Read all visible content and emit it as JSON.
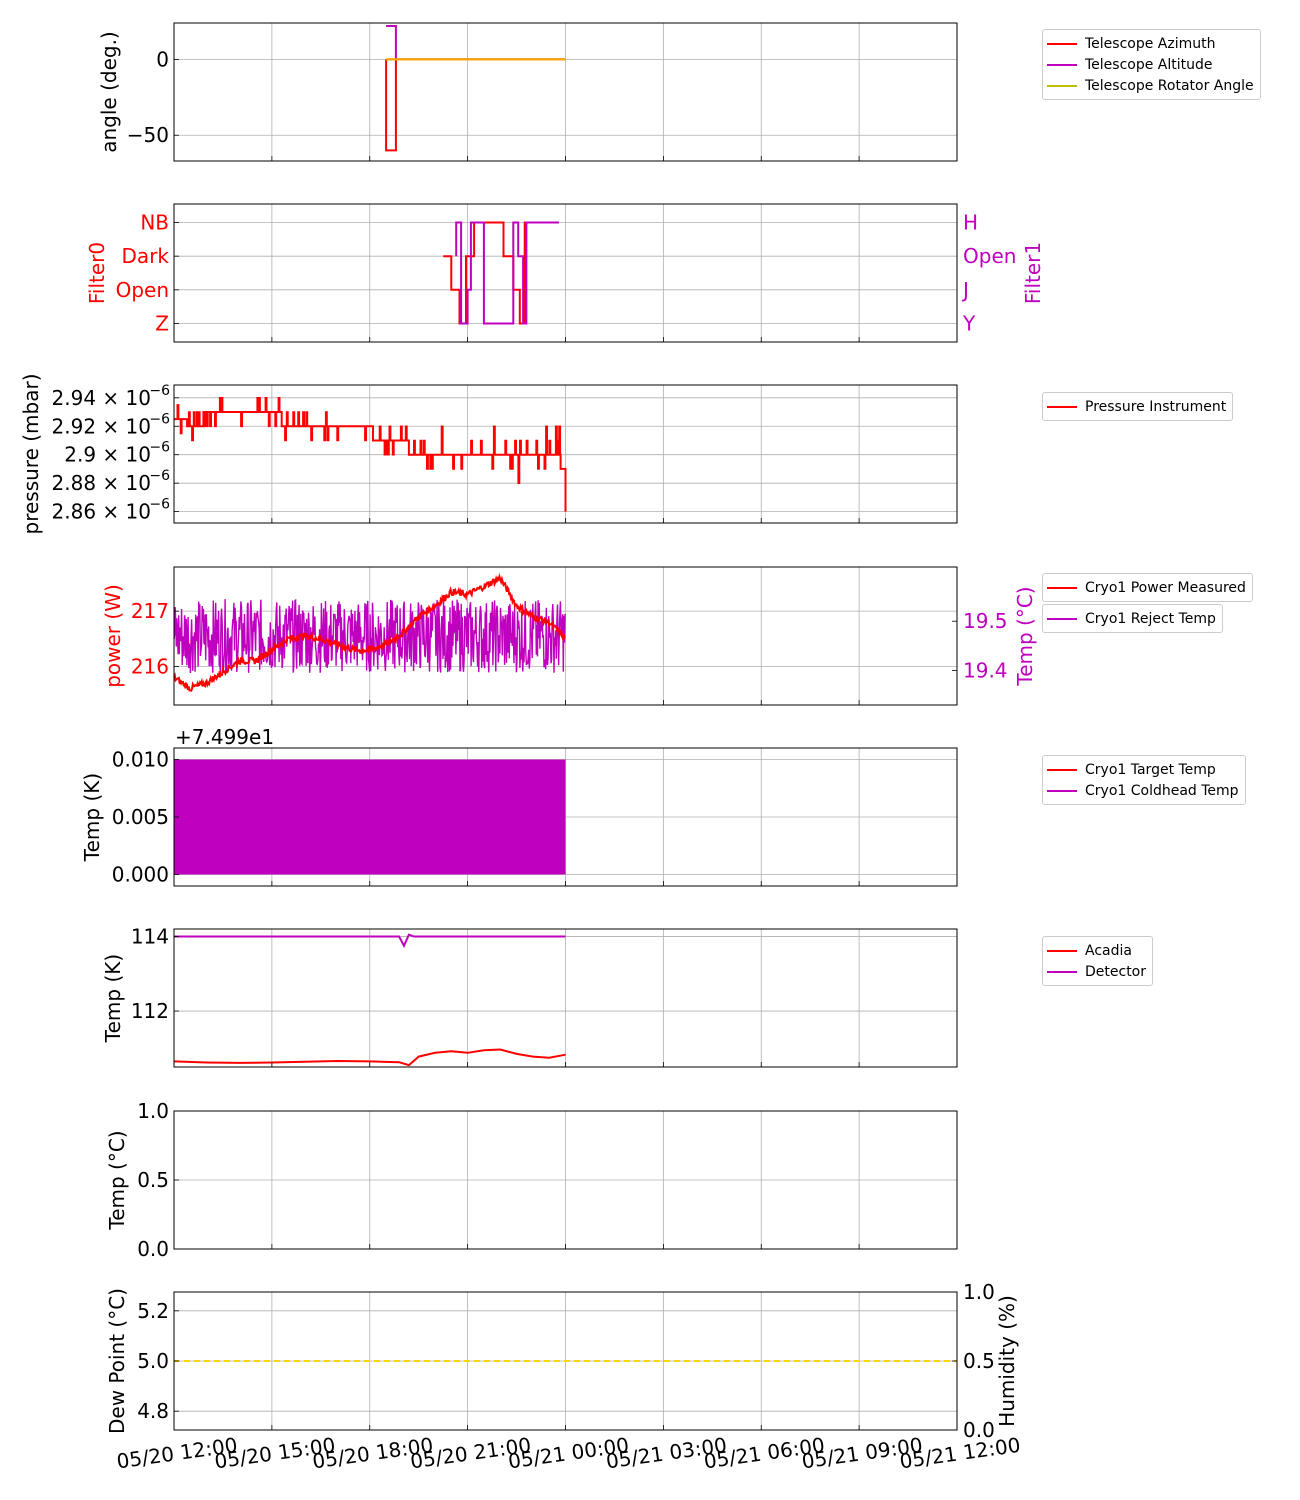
{
  "colors": {
    "red": "#ff0000",
    "magenta": "#bf00bf",
    "olive": "#bfbf00",
    "orange": "#ffa500",
    "gold": "#ffd700",
    "grid": "#b0b0b0"
  },
  "x_axis": {
    "ticks": [
      "05/20 12:00",
      "05/20 15:00",
      "05/20 18:00",
      "05/20 21:00",
      "05/21 00:00",
      "05/21 03:00",
      "05/21 06:00",
      "05/21 09:00",
      "05/21 12:00"
    ]
  },
  "legends": {
    "angle": [
      "Telescope Azimuth",
      "Telescope Altitude",
      "Telescope Rotator Angle"
    ],
    "pressure": [
      "Pressure Instrument"
    ],
    "power_a": [
      "Cryo1 Power Measured"
    ],
    "power_b": [
      "Cryo1 Reject Temp"
    ],
    "cryo": [
      "Cryo1 Target Temp",
      "Cryo1 Coldhead Temp"
    ],
    "detector": [
      "Acadia",
      "Detector"
    ]
  },
  "chart_data": [
    {
      "type": "line",
      "panel": "angle",
      "ylabel": "angle (deg.)",
      "yticks": [
        "0",
        "−50"
      ],
      "ylim": [
        -67,
        24
      ],
      "grid": true,
      "legend": "right",
      "series": [
        {
          "name": "Telescope Azimuth",
          "color": "red",
          "x": [
            18.5,
            18.5,
            18.8,
            18.8,
            24.0
          ],
          "y": [
            0,
            -60,
            -60,
            0,
            0
          ]
        },
        {
          "name": "Telescope Altitude",
          "color": "magenta",
          "x": [
            18.5,
            18.8,
            18.8,
            24.0
          ],
          "y": [
            22,
            22,
            0,
            0
          ]
        },
        {
          "name": "Telescope Rotator Angle",
          "color": "olive",
          "x": [
            18.5,
            24.0
          ],
          "y": [
            0,
            0
          ]
        }
      ],
      "overlay": {
        "color": "orange",
        "x": [
          18.5,
          24.0
        ],
        "y": [
          0,
          0
        ]
      }
    },
    {
      "type": "line",
      "panel": "filters",
      "ylabel_left": "Filter0",
      "ylabel_right": "Filter1",
      "categories_left": [
        "Z",
        "Open",
        "Dark",
        "NB"
      ],
      "categories_right": [
        "Y",
        "J",
        "Open",
        "H"
      ],
      "grid": true,
      "series": [
        {
          "name": "Filter0",
          "color": "red",
          "x": [
            20.25,
            20.5,
            20.5,
            20.75,
            20.75,
            20.95,
            20.95,
            21.2,
            21.2,
            22.1,
            22.1,
            22.4,
            22.4,
            22.6,
            22.6,
            22.75,
            22.75,
            23.8
          ],
          "y": [
            2,
            2,
            1,
            1,
            0,
            0,
            2,
            2,
            3,
            3,
            2,
            2,
            1,
            1,
            0,
            0,
            3,
            3
          ]
        },
        {
          "name": "Filter1",
          "color": "magenta",
          "x": [
            20.65,
            20.65,
            20.8,
            20.8,
            21.0,
            21.0,
            21.1,
            21.1,
            21.5,
            21.5,
            22.4,
            22.4,
            22.55,
            22.55,
            22.7,
            22.7,
            22.8,
            22.8,
            23.8
          ],
          "y": [
            2,
            3,
            3,
            0,
            0,
            1,
            1,
            3,
            3,
            0,
            0,
            3,
            3,
            2,
            2,
            0,
            0,
            3,
            3
          ]
        }
      ]
    },
    {
      "type": "line",
      "panel": "pressure",
      "ylabel": "pressure (mbar)",
      "yticks": [
        {
          "v": 2.94,
          "label": "2.94 × 10"
        },
        {
          "v": 2.92,
          "label": "2.92 × 10"
        },
        {
          "v": 2.9,
          "label": "2.9 × 10"
        },
        {
          "v": 2.88,
          "label": "2.88 × 10"
        },
        {
          "v": 2.86,
          "label": "2.86 × 10"
        }
      ],
      "tick_exponent": "−6",
      "ylim": [
        2.852,
        2.949
      ],
      "grid": true,
      "legend": "right",
      "series": [
        {
          "name": "Pressure Instrument",
          "color": "red",
          "x": [
            12.0,
            12.4,
            12.4,
            12.9,
            12.9,
            15.3,
            15.3,
            18.1,
            18.1,
            19.2,
            19.2,
            20.2,
            20.2,
            23.85,
            23.85,
            24.0,
            24.0
          ],
          "y": [
            2.925,
            2.925,
            2.92,
            2.92,
            2.93,
            2.93,
            2.92,
            2.92,
            2.91,
            2.91,
            2.9,
            2.9,
            2.9,
            2.9,
            2.89,
            2.89,
            2.86
          ]
        },
        {
          "name": "Pressure Instrument noise",
          "color": "red",
          "noise": true,
          "x0": 12.0,
          "x1": 24.0
        }
      ]
    },
    {
      "type": "line",
      "panel": "power",
      "ylabel_left": "power (W)",
      "ylabel_right": "Temp (°C)",
      "yticks_left": [
        "217",
        "216"
      ],
      "yticks_right": [
        "19.5",
        "19.4"
      ],
      "ylim_left": [
        215.3,
        217.8
      ],
      "ylim_right": [
        19.33,
        19.61
      ],
      "grid": true,
      "legend": "right",
      "series": [
        {
          "name": "Cryo1 Power Measured",
          "color": "red",
          "x": [
            12.0,
            12.5,
            13.0,
            13.5,
            14.0,
            14.5,
            15.0,
            15.5,
            16.0,
            16.5,
            17.0,
            17.5,
            18.0,
            18.5,
            19.0,
            19.5,
            20.0,
            20.5,
            21.0,
            21.5,
            22.0,
            22.5,
            23.0,
            23.5,
            24.0
          ],
          "y": [
            215.8,
            215.6,
            215.7,
            215.9,
            216.1,
            216.1,
            216.3,
            216.5,
            216.55,
            216.5,
            216.4,
            216.3,
            216.3,
            216.4,
            216.6,
            216.9,
            217.1,
            217.35,
            217.3,
            217.45,
            217.6,
            217.1,
            216.9,
            216.8,
            216.5
          ]
        },
        {
          "name": "Cryo1 Reject Temp",
          "color": "magenta",
          "noise": true,
          "x0": 12.0,
          "x1": 24.0,
          "center": 19.47,
          "amp": 0.075
        }
      ]
    },
    {
      "type": "area",
      "panel": "cryo",
      "ylabel": "Temp (K)",
      "offset_label": "+7.499e1",
      "yticks": [
        "0.010",
        "0.005",
        "0.000"
      ],
      "ylim": [
        -0.001,
        0.011
      ],
      "grid": true,
      "legend": "right",
      "series": [
        {
          "name": "Cryo1 Target Temp",
          "color": "red",
          "x": [
            12.0,
            24.0
          ],
          "y": [
            0.0,
            0.0
          ]
        },
        {
          "name": "Cryo1 Coldhead Temp",
          "color": "magenta",
          "x": [
            12.0,
            24.0
          ],
          "y_low": 0.0,
          "y_high": 0.01
        }
      ]
    },
    {
      "type": "line",
      "panel": "detector",
      "ylabel": "Temp (K)",
      "yticks": [
        "114",
        "112"
      ],
      "ylim": [
        110.5,
        114.2
      ],
      "grid": true,
      "legend": "right",
      "series": [
        {
          "name": "Acadia",
          "color": "red",
          "x": [
            12.0,
            13.0,
            14.0,
            15.0,
            16.0,
            17.0,
            18.0,
            18.9,
            19.2,
            19.5,
            20.0,
            20.5,
            21.0,
            21.5,
            22.0,
            22.5,
            23.0,
            23.5,
            24.0
          ],
          "y": [
            110.65,
            110.62,
            110.61,
            110.62,
            110.64,
            110.66,
            110.65,
            110.63,
            110.55,
            110.78,
            110.88,
            110.92,
            110.88,
            110.95,
            110.97,
            110.85,
            110.78,
            110.75,
            110.83
          ]
        },
        {
          "name": "Detector",
          "color": "magenta",
          "x": [
            12.0,
            18.9,
            19.05,
            19.2,
            19.35,
            19.5,
            24.0
          ],
          "y": [
            114.0,
            114.0,
            113.75,
            114.05,
            114.0,
            114.0,
            114.0
          ]
        }
      ]
    },
    {
      "type": "line",
      "panel": "weather",
      "ylabel": "Temp (°C)",
      "yticks": [
        "1.0",
        "0.5",
        "0.0"
      ],
      "ylim": [
        0.0,
        1.0
      ],
      "grid": true,
      "series": []
    },
    {
      "type": "line",
      "panel": "dewpoint",
      "ylabel_left": "Dew Point (°C)",
      "ylabel_right": "Humidity (%)",
      "yticks_left": [
        "5.2",
        "5.0",
        "4.8"
      ],
      "yticks_right": [
        "1.0",
        "0.5",
        "0.0"
      ],
      "ylim_left": [
        4.725,
        5.275
      ],
      "ylim_right": [
        0.0,
        1.0
      ],
      "grid": true,
      "series": [
        {
          "color": "gold",
          "dashed": true,
          "x": [
            12.0,
            36.0
          ],
          "y": [
            5.0,
            5.0
          ]
        }
      ]
    }
  ]
}
